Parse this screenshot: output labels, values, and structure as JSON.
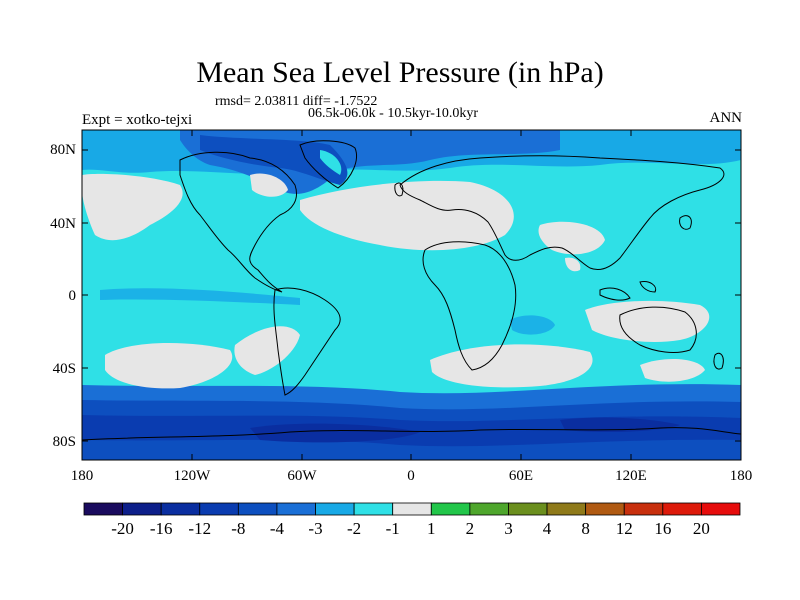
{
  "title": "Mean Sea Level Pressure (in hPa)",
  "stats_line": "rmsd= 2.03811 diff= -1.7522",
  "period_line": "06.5k-06.0k - 10.5kyr-10.0kyr",
  "experiment": "Expt = xotko-tejxi",
  "season": "ANN",
  "lat_labels": [
    "80N",
    "40N",
    "0",
    "40S",
    "80S"
  ],
  "lon_labels": [
    "180",
    "120W",
    "60W",
    "0",
    "60E",
    "120E",
    "180"
  ],
  "colorbar": {
    "labels": [
      "-20",
      "-16",
      "-12",
      "-8",
      "-4",
      "-3",
      "-2",
      "-1",
      "1",
      "2",
      "3",
      "4",
      "8",
      "12",
      "16",
      "20"
    ],
    "colors": [
      "#1a0b5e",
      "#0d1f8a",
      "#0a2ea0",
      "#0a3cb0",
      "#0d4fbf",
      "#1a6fd6",
      "#18a9e6",
      "#2fe0e6",
      "#e6e6e6",
      "#22c64a",
      "#4ea62c",
      "#6b8f1e",
      "#8f7a1a",
      "#b05a12",
      "#c8300e",
      "#dd1a0a",
      "#e60c0c"
    ]
  }
}
